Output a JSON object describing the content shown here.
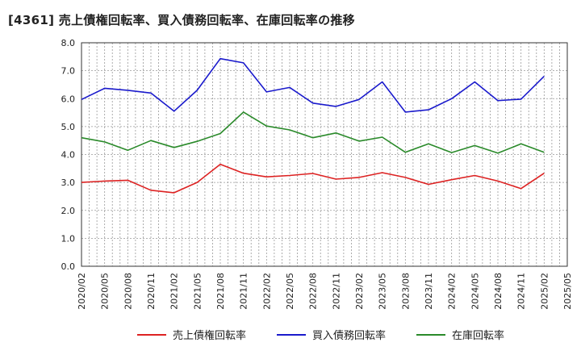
{
  "chart_data": {
    "type": "line",
    "title": "[4361]  売上債権回転率、買入債務回転率、在庫回転率の推移",
    "x": [
      "2020/02",
      "2020/05",
      "2020/08",
      "2020/11",
      "2021/02",
      "2021/05",
      "2021/08",
      "2021/11",
      "2022/02",
      "2022/05",
      "2022/08",
      "2022/11",
      "2023/02",
      "2023/05",
      "2023/08",
      "2023/11",
      "2024/02",
      "2024/05",
      "2024/08",
      "2024/11",
      "2025/02",
      "2025/05"
    ],
    "ylim": [
      0,
      8
    ],
    "yticks": [
      "0.0",
      "1.0",
      "2.0",
      "3.0",
      "4.0",
      "5.0",
      "6.0",
      "7.0",
      "8.0"
    ],
    "grid": true,
    "legend_position": "bottom",
    "series": [
      {
        "name": "売上債権回転率",
        "color": "#dd2222",
        "values": [
          3.0,
          3.05,
          3.08,
          2.72,
          2.63,
          3.0,
          3.65,
          3.33,
          3.2,
          3.25,
          3.32,
          3.12,
          3.18,
          3.35,
          3.18,
          2.93,
          3.1,
          3.25,
          3.05,
          2.78,
          3.33,
          null
        ]
      },
      {
        "name": "買入債務回転率",
        "color": "#1a1acc",
        "values": [
          5.97,
          6.37,
          6.3,
          6.2,
          5.55,
          6.3,
          7.43,
          7.28,
          6.24,
          6.4,
          5.84,
          5.72,
          5.97,
          6.6,
          5.52,
          5.6,
          6.0,
          6.6,
          5.93,
          5.98,
          6.8,
          null
        ]
      },
      {
        "name": "在庫回転率",
        "color": "#2a8a2a",
        "values": [
          4.6,
          4.45,
          4.15,
          4.5,
          4.25,
          4.47,
          4.75,
          5.52,
          5.02,
          4.88,
          4.6,
          4.77,
          4.48,
          4.62,
          4.08,
          4.38,
          4.07,
          4.32,
          4.05,
          4.38,
          4.08,
          null
        ]
      }
    ]
  }
}
